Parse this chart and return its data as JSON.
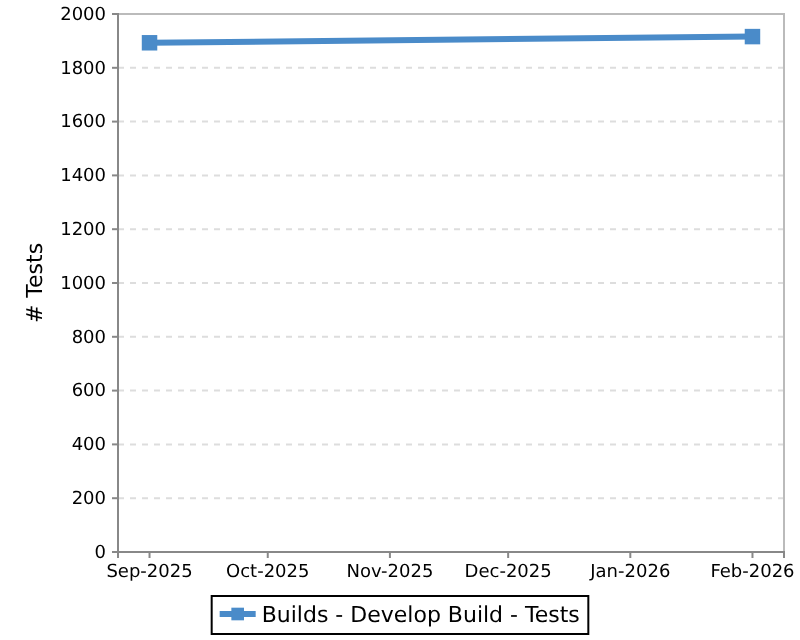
{
  "chart_data": {
    "type": "line",
    "ylabel": "# Tests",
    "x": [
      "2025-09-01",
      "2026-02-01"
    ],
    "series": [
      {
        "name": "Builds - Develop Build - Tests",
        "color": "#4a8bc9",
        "values": [
          1893,
          1916
        ]
      }
    ],
    "xlim": [
      "2025-08-24",
      "2026-02-09"
    ],
    "xticks": [
      {
        "value": "2025-09-01",
        "label": "Sep-2025"
      },
      {
        "value": "2025-10-01",
        "label": "Oct-2025"
      },
      {
        "value": "2025-11-01",
        "label": "Nov-2025"
      },
      {
        "value": "2025-12-01",
        "label": "Dec-2025"
      },
      {
        "value": "2026-01-01",
        "label": "Jan-2026"
      },
      {
        "value": "2026-02-01",
        "label": "Feb-2026"
      }
    ],
    "ylim": [
      0,
      2000
    ],
    "yticks": [
      0,
      200,
      400,
      600,
      800,
      1000,
      1200,
      1400,
      1600,
      1800,
      2000
    ],
    "grid": "y",
    "legend": "bottom",
    "marker": "square",
    "line_style": "solid"
  }
}
